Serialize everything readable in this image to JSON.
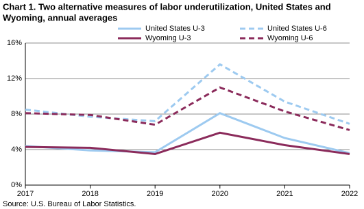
{
  "chart_data": {
    "type": "line",
    "title": [
      "Chart 1. Two alternative measures of labor underutilization, United States and",
      "Wyoming, annual averages"
    ],
    "x": [
      2017,
      2018,
      2019,
      2020,
      2021,
      2022
    ],
    "xlim": [
      2017,
      2022
    ],
    "xticks": [
      2017,
      2018,
      2019,
      2020,
      2021,
      2022
    ],
    "ylim": [
      0,
      16
    ],
    "yticks": [
      {
        "value": 0,
        "label": "0%"
      },
      {
        "value": 4,
        "label": "4%"
      },
      {
        "value": 8,
        "label": "8%"
      },
      {
        "value": 12,
        "label": "12%"
      },
      {
        "value": 16,
        "label": "16%"
      }
    ],
    "grid": true,
    "series": [
      {
        "name": "United States U-3",
        "color": "#9dcaf0",
        "dashed": false,
        "values": [
          4.4,
          3.9,
          3.7,
          8.1,
          5.3,
          3.6
        ]
      },
      {
        "name": "United States U-6",
        "color": "#9dcaf0",
        "dashed": true,
        "values": [
          8.5,
          7.7,
          7.2,
          13.6,
          9.4,
          6.9
        ]
      },
      {
        "name": "Wyoming U-3",
        "color": "#8b2b5b",
        "dashed": false,
        "values": [
          4.3,
          4.2,
          3.5,
          5.9,
          4.5,
          3.5
        ]
      },
      {
        "name": "Wyoming U-6",
        "color": "#8b2b5b",
        "dashed": true,
        "values": [
          8.1,
          7.9,
          6.8,
          11.0,
          8.3,
          6.2
        ]
      }
    ],
    "source": "Source: U.S. Bureau of Labor Statistics."
  }
}
